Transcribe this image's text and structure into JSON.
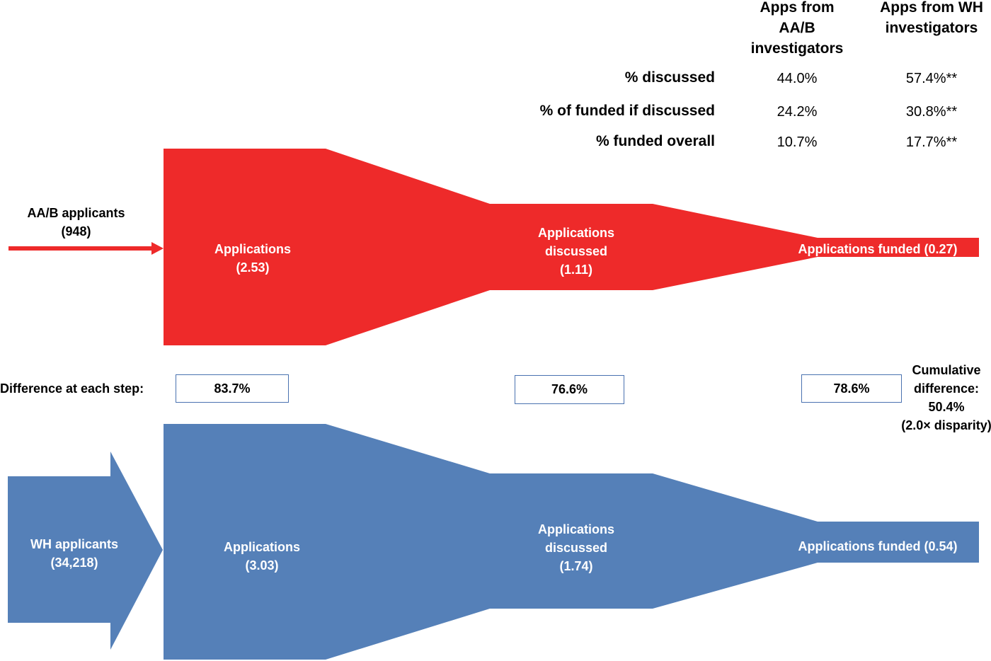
{
  "table": {
    "col_headers": [
      "Apps from AA/B investigators",
      "Apps from WH investigators"
    ],
    "rows": [
      {
        "label": "% discussed",
        "aab": "44.0%",
        "wh": "57.4%**"
      },
      {
        "label": "% of funded if discussed",
        "aab": "24.2%",
        "wh": "30.8%**"
      },
      {
        "label": "% funded overall",
        "aab": "10.7%",
        "wh": "17.7%**"
      }
    ]
  },
  "aab": {
    "applicants_label": "AA/B applicants",
    "applicants_count": "(948)",
    "color": "#ee2a2a",
    "stages": [
      {
        "label": "Applications",
        "value": "(2.53)"
      },
      {
        "label": "Applications discussed",
        "value": "(1.11)"
      },
      {
        "label": "Applications funded (0.27)"
      }
    ]
  },
  "wh": {
    "applicants_label": "WH applicants",
    "applicants_count": "(34,218)",
    "color": "#5580b8",
    "stages": [
      {
        "label": "Applications",
        "value": "(3.03)"
      },
      {
        "label": "Applications discussed",
        "value": "(1.74)"
      },
      {
        "label": "Applications funded (0.54)"
      }
    ]
  },
  "difference": {
    "label": "Difference at each step:",
    "steps": [
      "83.7%",
      "76.6%",
      "78.6%"
    ],
    "cumulative_label": "Cumulative difference:",
    "cumulative_value": "50.4%",
    "disparity": "(2.0× disparity)"
  }
}
